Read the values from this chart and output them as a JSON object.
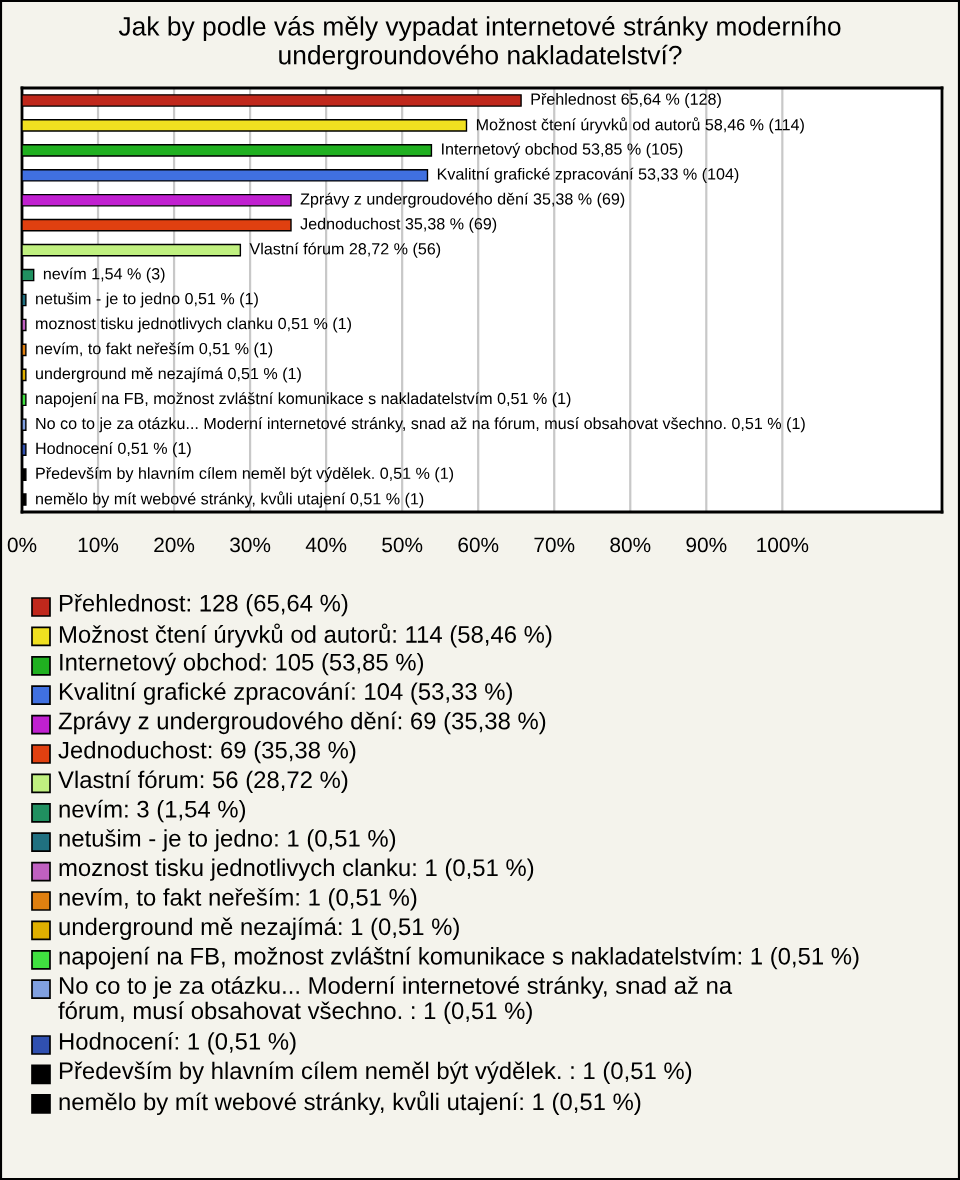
{
  "chart_data": {
    "type": "bar",
    "orientation": "horizontal",
    "title": "Jak by podle vás měly vypadat internetové stránky moderního\nundergroundového nakladatelství?",
    "categories": [
      "Přehlednost",
      "Možnost čtení úryvků od autorů",
      "Internetový obchod",
      "Kvalitní grafické zpracování",
      "Zprávy z undergroudového dění",
      "Jednoduchost",
      "Vlastní fórum",
      "nevím",
      "netušim - je to jedno",
      "moznost tisku jednotlivych clanku",
      "nevím, to fakt neřeším",
      "underground mě nezajímá",
      "napojení na FB, možnost zvláštní komunikace s nakladatelstvím",
      "No co to je za otázku... Moderní internetové stránky, snad až na fórum, musí obsahovat všechno.",
      "Hodnocení",
      "Především by hlavním cílem neměl být výdělek.",
      "nemělo by mít webové stránky, kvůli utajení"
    ],
    "values": [
      65.64,
      58.46,
      53.85,
      53.33,
      35.38,
      35.38,
      28.72,
      1.54,
      0.51,
      0.51,
      0.51,
      0.51,
      0.51,
      0.51,
      0.51,
      0.51,
      0.51
    ],
    "value_labels": [
      "65,64 % (128)",
      "58,46 % (114)",
      "53,85 % (105)",
      "53,33 % (104)",
      "35,38 % (69)",
      "35,38 % (69)",
      "28,72 % (56)",
      "1,54 % (3)",
      "0,51 % (1)",
      "0,51 % (1)",
      "0,51 % (1)",
      "0,51 % (1)",
      "0,51 % (1)",
      "0,51 % (1)",
      "0,51 % (1)",
      "0,51 % (1)",
      "0,51 % (1)"
    ],
    "colors": [
      "#c0281c",
      "#f0e020",
      "#20b020",
      "#4070e0",
      "#c020d0",
      "#e04010",
      "#c0f080",
      "#209060",
      "#207080",
      "#c060c0",
      "#e08010",
      "#e0b000",
      "#40e040",
      "#80a0e0",
      "#3050b0",
      "#000000",
      "#000000"
    ],
    "annotations": [
      "Přehlednost: 128 (65,64 %)",
      "Možnost čtení úryvků od autorů: 114 (58,46 %)",
      "Internetový obchod: 105 (53,85 %)",
      "Kvalitní grafické zpracování: 104 (53,33 %)",
      "Zprávy z undergroudového dění: 69 (35,38 %)",
      "Jednoduchost: 69 (35,38 %)",
      "Vlastní fórum: 56 (28,72 %)",
      "nevím: 3 (1,54 %)",
      "netušim - je to jedno: 1 (0,51 %)",
      "moznost tisku jednotlivych clanku: 1 (0,51 %)",
      "nevím, to fakt neřeším: 1 (0,51 %)",
      "underground mě nezajímá: 1 (0,51 %)",
      "napojení na FB, možnost zvláštní komunikace s nakladatelstvím: 1 (0,51 %)",
      "No co to je za otázku... Moderní internetové stránky, snad až na fórum, musí obsahovat všechno. : 1 (0,51 %)",
      "Hodnocení: 1 (0,51 %)",
      "Především by hlavním cílem neměl být výdělek. : 1 (0,51 %)",
      "nemělo by mít webové stránky, kvůli utajení: 1 (0,51 %)"
    ],
    "xlim": [
      0,
      121
    ],
    "xticks": [
      {
        "value": 0,
        "label": "0%"
      },
      {
        "value": 10,
        "label": "10%"
      },
      {
        "value": 20,
        "label": "20%"
      },
      {
        "value": 30,
        "label": "30%"
      },
      {
        "value": 40,
        "label": "40%"
      },
      {
        "value": 50,
        "label": "50%"
      },
      {
        "value": 60,
        "label": "60%"
      },
      {
        "value": 70,
        "label": "70%"
      },
      {
        "value": 80,
        "label": "80%"
      },
      {
        "value": 90,
        "label": "90%"
      },
      {
        "value": 100,
        "label": "100%"
      }
    ],
    "grid": "x",
    "tick_labels": "x"
  }
}
